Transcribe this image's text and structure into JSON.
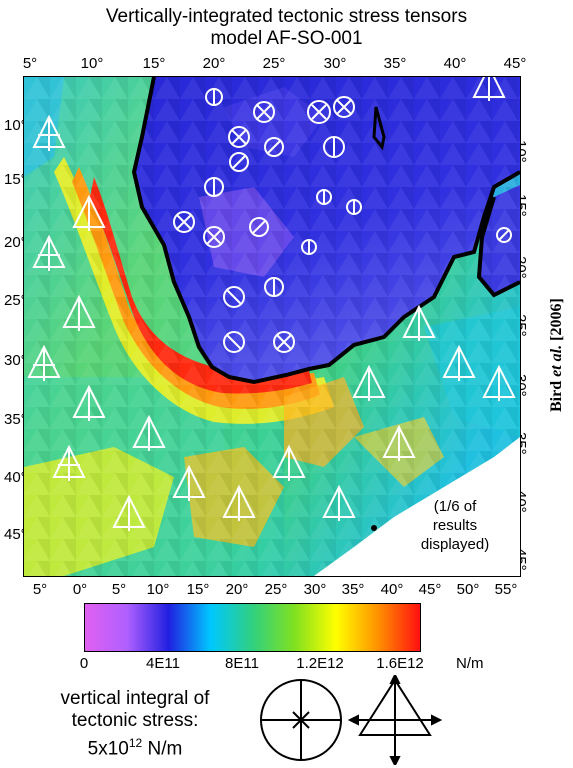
{
  "title": {
    "line1": "Vertically-integrated tectonic stress tensors",
    "line2": "model AF-SO-001"
  },
  "axes": {
    "top_ticks": [
      "5°",
      "10°",
      "15°",
      "20°",
      "25°",
      "30°",
      "35°",
      "40°",
      "45°"
    ],
    "bottom_ticks": [
      "5°",
      "0°",
      "5°",
      "10°",
      "15°",
      "20°",
      "25°",
      "30°",
      "35°",
      "40°",
      "45°",
      "50°",
      "55°"
    ],
    "left_ticks": [
      "10°",
      "15°",
      "20°",
      "25°",
      "30°",
      "35°",
      "40°",
      "45°"
    ],
    "right_ticks": [
      "10°",
      "15°",
      "20°",
      "25°",
      "30°",
      "35°",
      "40°",
      "45°"
    ]
  },
  "credit": {
    "name": "Bird",
    "etal": "et al.",
    "year": "[2006]"
  },
  "note": {
    "line1": "(1/6 of",
    "line2": "results",
    "line3": "displayed)"
  },
  "colorbar": {
    "labels": [
      "0",
      "4E11",
      "8E11",
      "1.2E12",
      "1.6E12"
    ],
    "unit": "N/m",
    "colors": [
      "#e060f0",
      "#b060ff",
      "#2020e0",
      "#00c8ff",
      "#30d080",
      "#80e020",
      "#ffff00",
      "#ff9000",
      "#ff1010"
    ],
    "range": [
      0,
      1750000000000.0
    ]
  },
  "legend": {
    "line1": "vertical integral of",
    "line2": "tectonic stress:",
    "line3_base": "5x10",
    "line3_exp": "12",
    "line3_unit": " N/m"
  },
  "map_colors": {
    "land_blue": "#2a2ad8",
    "land_purple": "#8a5af0",
    "ocean_green": "#40d070",
    "ocean_cyan": "#20c8e8",
    "ocean_yellow": "#e8f020",
    "ocean_red": "#ff2a10",
    "ocean_orange": "#ff9a10",
    "coast": "#000000",
    "symbol": "#ffffff"
  }
}
